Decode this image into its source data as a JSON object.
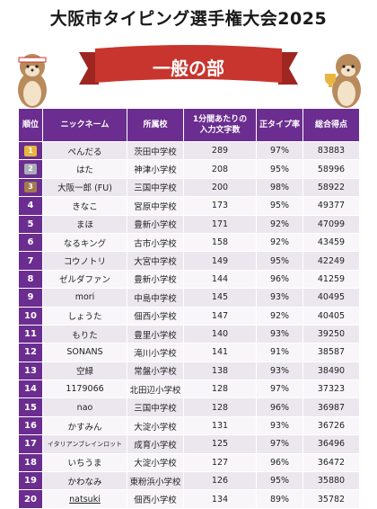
{
  "title": "大阪市タイピング選手権大会2025",
  "banner": {
    "label": "一般の部",
    "color": "#c8352e"
  },
  "colors": {
    "header": "#6b2d8f",
    "row_odd": "#ece7ef",
    "row_even": "#f8f6f9"
  },
  "headers": {
    "rank": "順位",
    "nickname": "ニックネーム",
    "school": "所属校",
    "chars_line1": "1分間あたりの",
    "chars_line2": "入力文字数",
    "accuracy": "正タイプ率",
    "score": "総合得点"
  },
  "rows": [
    {
      "rank": "1",
      "nickname": "ぺんだる",
      "school": "茨田中学校",
      "chars": "289",
      "accuracy": "97%",
      "score": "83883"
    },
    {
      "rank": "2",
      "nickname": "はた",
      "school": "神津小学校",
      "chars": "208",
      "accuracy": "95%",
      "score": "58996"
    },
    {
      "rank": "3",
      "nickname": "大阪一郎 (FU)",
      "school": "三国中学校",
      "chars": "200",
      "accuracy": "98%",
      "score": "58922"
    },
    {
      "rank": "4",
      "nickname": "きなこ",
      "school": "宮原中学校",
      "chars": "173",
      "accuracy": "95%",
      "score": "49377"
    },
    {
      "rank": "5",
      "nickname": "まほ",
      "school": "豊新小学校",
      "chars": "171",
      "accuracy": "92%",
      "score": "47099"
    },
    {
      "rank": "6",
      "nickname": "なるキング",
      "school": "古市小学校",
      "chars": "158",
      "accuracy": "92%",
      "score": "43459"
    },
    {
      "rank": "7",
      "nickname": "コウノトリ",
      "school": "大宮中学校",
      "chars": "149",
      "accuracy": "95%",
      "score": "42249"
    },
    {
      "rank": "8",
      "nickname": "ゼルダファン",
      "school": "豊新小学校",
      "chars": "144",
      "accuracy": "96%",
      "score": "41259"
    },
    {
      "rank": "9",
      "nickname": "mori",
      "school": "中島中学校",
      "chars": "145",
      "accuracy": "93%",
      "score": "40495"
    },
    {
      "rank": "10",
      "nickname": "しょうた",
      "school": "佃西小学校",
      "chars": "147",
      "accuracy": "92%",
      "score": "40405"
    },
    {
      "rank": "11",
      "nickname": "もりた",
      "school": "豊里小学校",
      "chars": "140",
      "accuracy": "93%",
      "score": "39250"
    },
    {
      "rank": "12",
      "nickname": "SONANS",
      "school": "滝川小学校",
      "chars": "141",
      "accuracy": "91%",
      "score": "38587"
    },
    {
      "rank": "13",
      "nickname": "空緑",
      "school": "常盤小学校",
      "chars": "138",
      "accuracy": "93%",
      "score": "38490"
    },
    {
      "rank": "14",
      "nickname": "1179066",
      "school": "北田辺小学校",
      "chars": "128",
      "accuracy": "97%",
      "score": "37323"
    },
    {
      "rank": "15",
      "nickname": "nao",
      "school": "三国中学校",
      "chars": "128",
      "accuracy": "96%",
      "score": "36987"
    },
    {
      "rank": "16",
      "nickname": "かすみん",
      "school": "大淀小学校",
      "chars": "131",
      "accuracy": "93%",
      "score": "36726"
    },
    {
      "rank": "17",
      "nickname": "イタリアンブレインロット",
      "school": "成育小学校",
      "chars": "125",
      "accuracy": "97%",
      "score": "36496"
    },
    {
      "rank": "18",
      "nickname": "いちうま",
      "school": "大淀小学校",
      "chars": "127",
      "accuracy": "96%",
      "score": "36472"
    },
    {
      "rank": "19",
      "nickname": "かわなみ",
      "school": "東粉浜小学校",
      "chars": "126",
      "accuracy": "95%",
      "score": "35880"
    },
    {
      "rank": "20",
      "nickname": "natsuki",
      "school": "佃西小学校",
      "chars": "134",
      "accuracy": "89%",
      "score": "35782"
    }
  ]
}
